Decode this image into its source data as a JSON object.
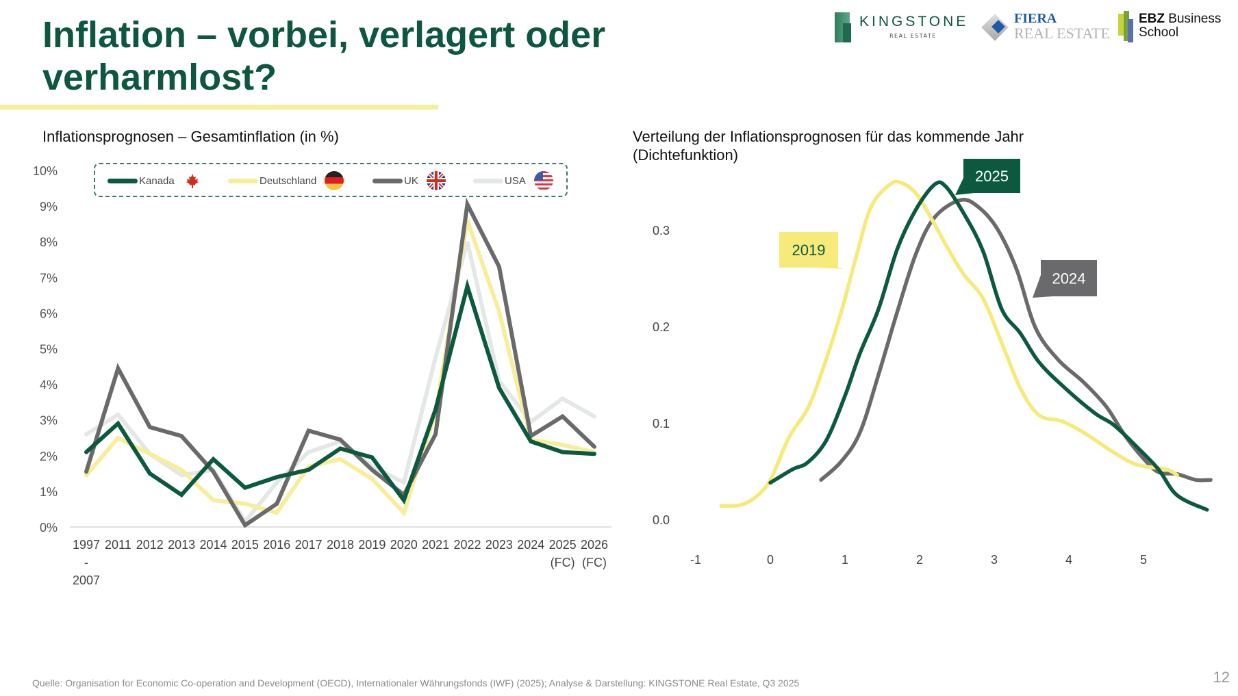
{
  "title": "Inflation – vorbei, verlagert oder verharmlost?",
  "logos": {
    "kingstone": {
      "name": "KINGSTONE",
      "sub": "REAL ESTATE"
    },
    "fiera": {
      "name": "FIERA",
      "sub": "REAL ESTATE"
    },
    "ebz": {
      "bold": "EBZ",
      "name": " Business",
      "line2": "School"
    }
  },
  "colors": {
    "kanada": "#0b5a3f",
    "deutschland": "#f8ee9a",
    "uk": "#6a6a6c",
    "usa": "#e3e7e5",
    "accent": "#0d5640",
    "title_bar": "#f7ee9b",
    "density_2019": "#f6eb7a",
    "density_2025": "#0b5a3f",
    "density_2024": "#6a6a6c"
  },
  "footer": {
    "source": "Quelle: Organisation for Economic Co-operation and Development (OECD), Internationaler Währungsfonds (IWF) (2025); Analyse & Darstellung: KINGSTONE Real Estate, Q3 2025",
    "page_number": "12"
  },
  "chart_data": [
    {
      "type": "line",
      "title": "Inflationsprognosen – Gesamtinflation (in %)",
      "xlabel": "",
      "ylabel": "",
      "ylim": [
        0,
        10
      ],
      "yticks": [
        "0%",
        "1%",
        "2%",
        "3%",
        "4%",
        "5%",
        "6%",
        "7%",
        "8%",
        "9%",
        "10%"
      ],
      "grid": false,
      "legend_position": "top",
      "categories": [
        [
          "1997",
          "-",
          "2007"
        ],
        [
          "2011"
        ],
        [
          "2012"
        ],
        [
          "2013"
        ],
        [
          "2014"
        ],
        [
          "2015"
        ],
        [
          "2016"
        ],
        [
          "2017"
        ],
        [
          "2018"
        ],
        [
          "2019"
        ],
        [
          "2020"
        ],
        [
          "2021"
        ],
        [
          "2022"
        ],
        [
          "2023"
        ],
        [
          "2024"
        ],
        [
          "2025",
          "(FC)"
        ],
        [
          "2026",
          "(FC)"
        ]
      ],
      "series": [
        {
          "name": "Kanada",
          "flag": "canada-flag",
          "values": [
            2.1,
            2.9,
            1.5,
            0.9,
            1.9,
            1.1,
            1.4,
            1.6,
            2.2,
            1.95,
            0.75,
            3.3,
            6.75,
            3.9,
            2.4,
            2.1,
            2.05
          ]
        },
        {
          "name": "Deutschland",
          "flag": "germany-flag",
          "values": [
            1.45,
            2.5,
            2.05,
            1.6,
            0.75,
            0.65,
            0.4,
            1.7,
            1.9,
            1.35,
            0.4,
            3.2,
            8.6,
            6.05,
            2.45,
            2.3,
            2.1
          ]
        },
        {
          "name": "UK",
          "flag": "uk-flag",
          "values": [
            1.55,
            4.45,
            2.8,
            2.55,
            1.55,
            0.05,
            0.65,
            2.7,
            2.45,
            1.6,
            0.9,
            2.6,
            9.05,
            7.3,
            2.55,
            3.1,
            2.25
          ]
        },
        {
          "name": "USA",
          "flag": "usa-flag",
          "values": [
            2.6,
            3.15,
            2.05,
            1.45,
            1.6,
            0.15,
            1.25,
            2.1,
            2.4,
            1.7,
            1.25,
            4.75,
            8.0,
            4.1,
            2.95,
            3.6,
            3.1
          ]
        }
      ]
    },
    {
      "type": "line",
      "title": "Verteilung der Inflationsprognosen für das kommende Jahr (Dichtefunktion)",
      "xlabel": "",
      "ylabel": "",
      "xlim": [
        -1,
        6
      ],
      "ylim": [
        0,
        0.35
      ],
      "xticks": [
        "-1",
        "0",
        "1",
        "2",
        "3",
        "4",
        "5"
      ],
      "yticks": [
        "0.0",
        "0.1",
        "0.2",
        "0.3"
      ],
      "grid": false,
      "series": [
        {
          "name": "2019",
          "label": "2019",
          "x": [
            -0.66,
            -0.4,
            -0.2,
            0,
            0.25,
            0.5,
            0.7,
            0.95,
            1.15,
            1.35,
            1.6,
            1.75,
            1.95,
            2.15,
            2.4,
            2.6,
            2.85,
            3.1,
            3.35,
            3.6,
            3.9,
            4.2,
            4.55,
            4.9,
            5.3,
            5.45
          ],
          "y": [
            0.014,
            0.015,
            0.023,
            0.041,
            0.085,
            0.115,
            0.155,
            0.215,
            0.272,
            0.324,
            0.347,
            0.349,
            0.338,
            0.313,
            0.278,
            0.253,
            0.229,
            0.183,
            0.136,
            0.108,
            0.102,
            0.09,
            0.072,
            0.057,
            0.052,
            0.046
          ]
        },
        {
          "name": "2025",
          "label": "2025",
          "x": [
            0,
            0.3,
            0.5,
            0.75,
            1.0,
            1.2,
            1.45,
            1.7,
            1.95,
            2.2,
            2.35,
            2.6,
            2.85,
            3.1,
            3.35,
            3.6,
            3.95,
            4.35,
            4.6,
            4.9,
            5.2,
            5.45,
            5.85
          ],
          "y": [
            0.038,
            0.052,
            0.059,
            0.082,
            0.128,
            0.172,
            0.218,
            0.28,
            0.321,
            0.347,
            0.345,
            0.316,
            0.278,
            0.218,
            0.193,
            0.163,
            0.136,
            0.11,
            0.098,
            0.076,
            0.052,
            0.025,
            0.01
          ]
        },
        {
          "name": "2024",
          "label": "2024",
          "x": [
            0.68,
            0.95,
            1.2,
            1.45,
            1.7,
            1.95,
            2.2,
            2.55,
            2.8,
            3.05,
            3.3,
            3.55,
            3.85,
            4.2,
            4.5,
            4.75,
            5.0,
            5.2,
            5.45,
            5.7,
            5.9
          ],
          "y": [
            0.041,
            0.06,
            0.09,
            0.15,
            0.215,
            0.275,
            0.313,
            0.331,
            0.323,
            0.3,
            0.259,
            0.199,
            0.166,
            0.142,
            0.117,
            0.087,
            0.063,
            0.049,
            0.047,
            0.041,
            0.041
          ]
        }
      ]
    }
  ]
}
